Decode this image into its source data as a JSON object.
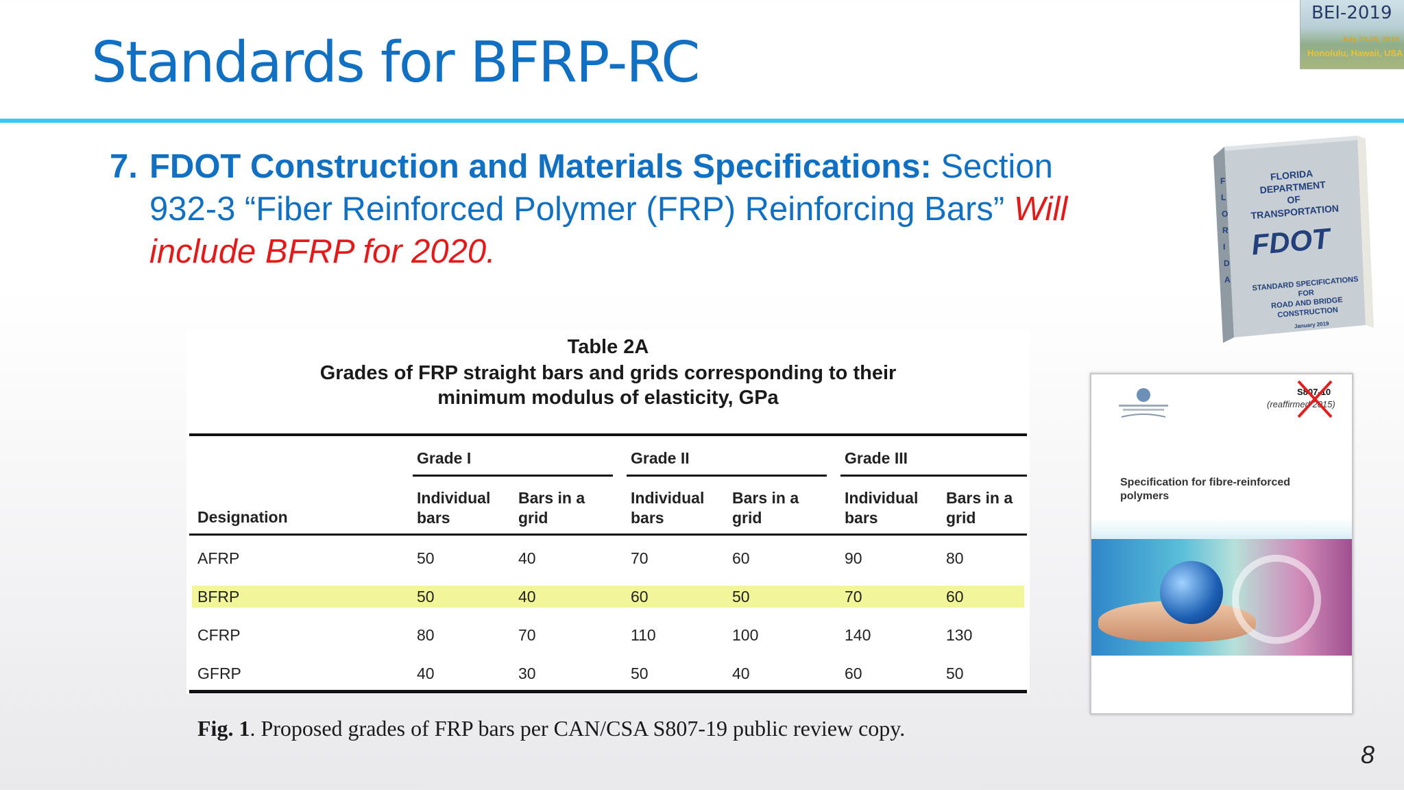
{
  "slide": {
    "title": "Standards for BFRP-RC",
    "page_number": "8"
  },
  "badge": {
    "title": "BEI-2019",
    "dates": "July 23-25, 2019",
    "location": "Honolulu, Hawaii, USA"
  },
  "bullet": {
    "number": "7.",
    "bold": "FDOT Construction and Materials Specifications:",
    "text": " Section 932-3 “Fiber Reinforced Polymer (FRP) Reinforcing Bars” ",
    "red": "Will include BFRP for 2020."
  },
  "table": {
    "caption_line1": "Table 2A",
    "caption_line2": "Grades of FRP straight bars and grids corresponding to their",
    "caption_line3": "minimum modulus of elasticity, GPa",
    "grades": [
      "Grade I",
      "Grade II",
      "Grade III"
    ],
    "designation_header": "Designation",
    "sub_headers": [
      [
        "Individual",
        "bars"
      ],
      [
        "Bars in a",
        "grid"
      ],
      [
        "Individual",
        "bars"
      ],
      [
        "Bars in a",
        "grid"
      ],
      [
        "Individual",
        "bars"
      ],
      [
        "Bars in a",
        "grid"
      ]
    ],
    "rows": [
      {
        "name": "AFRP",
        "values": [
          "50",
          "40",
          "70",
          "60",
          "90",
          "80"
        ]
      },
      {
        "name": "BFRP",
        "values": [
          "50",
          "40",
          "60",
          "50",
          "70",
          "60"
        ]
      },
      {
        "name": "CFRP",
        "values": [
          "80",
          "70",
          "110",
          "100",
          "140",
          "130"
        ]
      },
      {
        "name": "GFRP",
        "values": [
          "40",
          "30",
          "50",
          "40",
          "60",
          "50"
        ]
      }
    ],
    "highlight_row": "BFRP",
    "highlight_color": "#f2f59a"
  },
  "figure_caption": {
    "label": "Fig. 1",
    "text": ". Proposed grades of FRP bars per CAN/CSA S807-19 public review copy."
  },
  "fdot_book": {
    "spine": "FLORIDA",
    "line1": "FLORIDA",
    "line2": "DEPARTMENT",
    "line3": "OF",
    "line4": "TRANSPORTATION",
    "logo": "FDOT",
    "line5": "STANDARD SPECIFICATIONS",
    "line6": "FOR",
    "line7": "ROAD AND BRIDGE",
    "line8": "CONSTRUCTION",
    "line9": "January 2019"
  },
  "csa_cover": {
    "code": "S807-10",
    "reaffirmed": "(reaffirmed 2015)",
    "title": "Specification for fibre-reinforced polymers"
  },
  "colors": {
    "title_blue": "#1170c2",
    "rule_cyan": "#33ccee",
    "emphasis_red": "#e41a1a"
  }
}
